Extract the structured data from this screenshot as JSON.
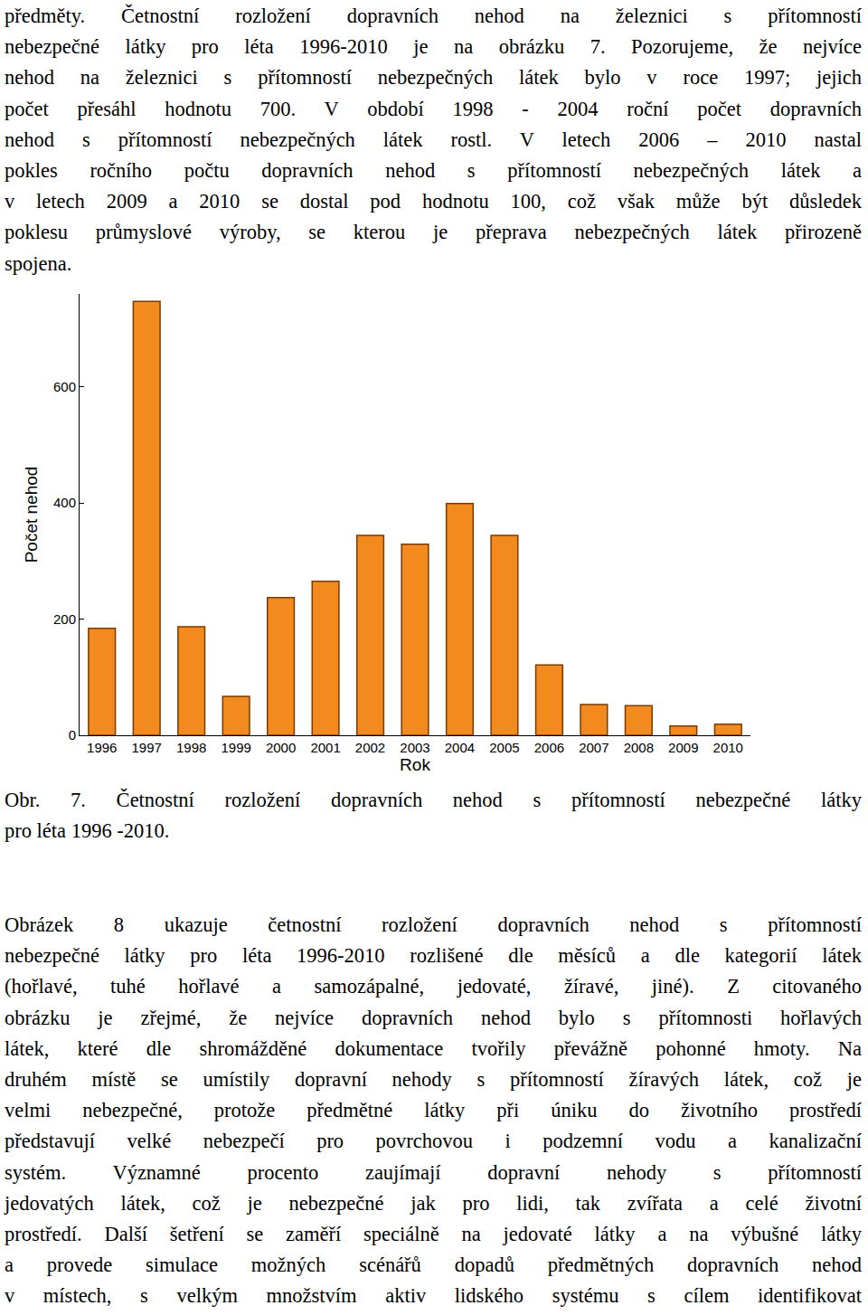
{
  "text_before": {
    "lines": [
      "předměty. Četnostní rozložení dopravních nehod na železnici s přítomností",
      "nebezpečné látky pro léta 1996-2010 je na obrázku 7. Pozorujeme, že nejvíce",
      "nehod na železnici s přítomností nebezpečných látek bylo v roce 1997; jejich",
      "počet přesáhl hodnotu 700. V období 1998 - 2004 roční počet dopravních",
      "nehod s přítomností nebezpečných látek rostl. V letech 2006 – 2010 nastal",
      "pokles ročního počtu dopravních nehod s přítomností nebezpečných látek a",
      "v letech 2009 a 2010 se dostal pod hodnotu 100, což však může být důsledek",
      "poklesu průmyslové výroby, se kterou je přeprava nebezpečných látek přirozeně",
      "spojena."
    ]
  },
  "chart_data": {
    "type": "bar",
    "x_label": "Rok",
    "y_label": "Počet nehod",
    "categories": [
      "1996",
      "1997",
      "1998",
      "1999",
      "2000",
      "2001",
      "2002",
      "2003",
      "2004",
      "2005",
      "2006",
      "2007",
      "2008",
      "2009",
      "2010"
    ],
    "values": [
      184,
      747,
      187,
      67,
      237,
      265,
      344,
      329,
      399,
      344,
      121,
      53,
      51,
      16,
      19
    ],
    "color": "#f28a1e",
    "ylim": [
      0,
      760
    ],
    "yticks": [
      0,
      200,
      400,
      600
    ],
    "grid": false
  },
  "caption": {
    "lines": [
      "Obr. 7. Četnostní rozložení dopravních nehod s přítomností nebezpečné látky",
      "pro léta 1996 -2010."
    ]
  },
  "text_after": {
    "lines": [
      "Obrázek 8 ukazuje četnostní rozložení dopravních nehod s přítomností",
      "nebezpečné látky pro léta 1996-2010 rozlišené dle měsíců a dle kategorií látek",
      "(hořlavé, tuhé hořlavé a samozápalné, jedovaté, žíravé, jiné). Z citovaného",
      "obrázku je zřejmé, že nejvíce dopravních nehod bylo s přítomnosti hořlavých",
      "látek, které dle shromážděné dokumentace tvořily převážně pohonné hmoty. Na",
      "druhém místě se umístily dopravní nehody s přítomností žíravých látek, což je",
      "velmi nebezpečné, protože předmětné látky při úniku do životního prostředí",
      "představují velké nebezpečí pro povrchovou i podzemní vodu a kanalizační",
      "systém. Významné procento zaujímají dopravní nehody s přítomností",
      "jedovatých látek, což je nebezpečné jak pro lidi, tak zvířata a celé životní",
      "prostředí. Další šetření se zaměří speciálně na jedovaté látky a na výbušné látky",
      "a provede simulace možných scénářů dopadů předmětných dopravních nehod",
      "v místech, s velkým množstvím aktiv lidského systému s cílem identifikovat"
    ]
  }
}
